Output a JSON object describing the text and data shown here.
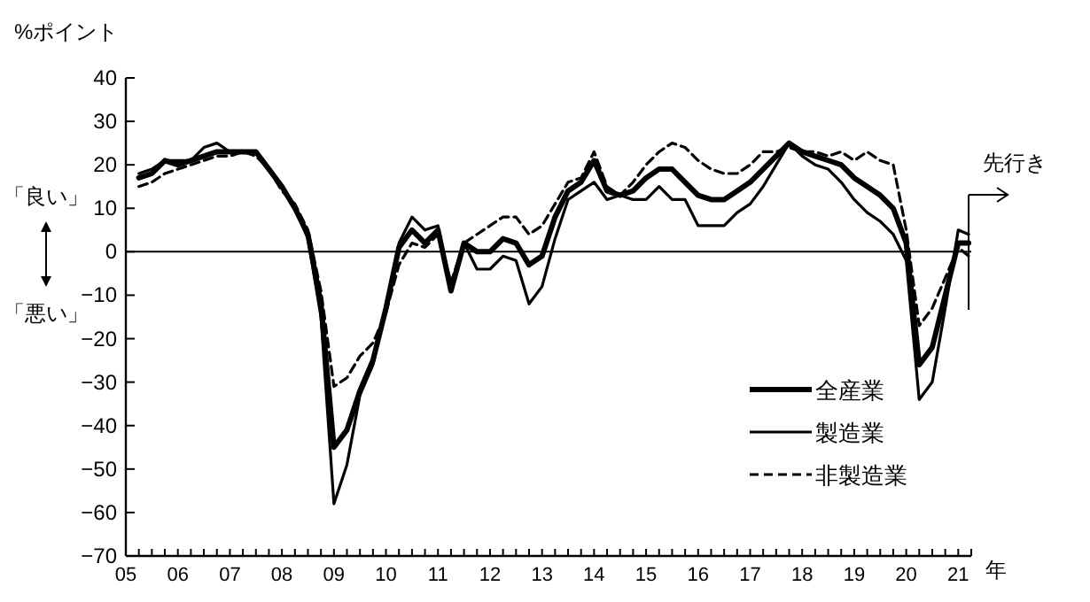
{
  "chart_data": {
    "type": "line",
    "ylabel": "%ポイント",
    "xlabel": "年",
    "annotations": [
      "先行き",
      "「良い」",
      "「悪い」"
    ],
    "x": [
      2005.25,
      2005.5,
      2005.75,
      2006,
      2006.25,
      2006.5,
      2006.75,
      2007,
      2007.25,
      2007.5,
      2007.75,
      2008,
      2008.25,
      2008.5,
      2008.75,
      2009,
      2009.25,
      2009.5,
      2009.75,
      2010,
      2010.25,
      2010.5,
      2010.75,
      2011,
      2011.25,
      2011.5,
      2011.75,
      2012,
      2012.25,
      2012.5,
      2012.75,
      2013,
      2013.25,
      2013.5,
      2013.75,
      2014,
      2014.25,
      2014.5,
      2014.75,
      2015,
      2015.25,
      2015.5,
      2015.75,
      2016,
      2016.25,
      2016.5,
      2016.75,
      2017,
      2017.25,
      2017.5,
      2017.75,
      2018,
      2018.25,
      2018.5,
      2018.75,
      2019,
      2019.25,
      2019.5,
      2019.75,
      2020,
      2020.25,
      2020.5,
      2020.75,
      2021,
      2021.2
    ],
    "series": [
      {
        "name": "全産業",
        "color": "#000000",
        "line_style": "solid",
        "values": [
          17,
          18,
          21,
          20,
          21,
          22,
          23,
          23,
          23,
          23,
          19,
          15,
          10,
          4,
          -12,
          -45,
          -41,
          -32,
          -25,
          -13,
          1,
          5,
          2,
          5,
          -9,
          2,
          0,
          0,
          3,
          2,
          -3,
          -1,
          8,
          14,
          16,
          21,
          14,
          13,
          14,
          17,
          19,
          19,
          16,
          13,
          12,
          12,
          14,
          16,
          19,
          22,
          25,
          23,
          22,
          21,
          20,
          17,
          15,
          13,
          10,
          2,
          -26,
          -22,
          -10,
          2,
          2
        ]
      },
      {
        "name": "製造業",
        "color": "#000000",
        "line_style": "solid",
        "values": [
          18,
          19,
          21,
          21,
          21,
          24,
          25,
          23,
          23,
          23,
          19,
          15,
          10,
          3,
          -15,
          -58,
          -49,
          -33,
          -26,
          -13,
          2,
          8,
          5,
          6,
          -9,
          2,
          -4,
          -4,
          -1,
          -2,
          -12,
          -8,
          3,
          12,
          14,
          16,
          12,
          13,
          12,
          12,
          15,
          12,
          12,
          6,
          6,
          6,
          9,
          11,
          15,
          20,
          25,
          22,
          20,
          19,
          16,
          12,
          9,
          7,
          4,
          -2,
          -34,
          -30,
          -13,
          5,
          4
        ]
      },
      {
        "name": "非製造業",
        "color": "#000000",
        "line_style": "dashed",
        "values": [
          15,
          16,
          18,
          19,
          20,
          21,
          22,
          22,
          23,
          22,
          19,
          14,
          11,
          5,
          -9,
          -31,
          -29,
          -24,
          -21,
          -14,
          -3,
          2,
          1,
          4,
          -7,
          2,
          4,
          6,
          8,
          8,
          4,
          6,
          11,
          16,
          17,
          23,
          15,
          13,
          16,
          20,
          23,
          25,
          24,
          21,
          19,
          18,
          18,
          20,
          23,
          23,
          24,
          23,
          23,
          22,
          23,
          21,
          23,
          21,
          20,
          5,
          -17,
          -13,
          -6,
          1,
          -1
        ]
      }
    ],
    "xlim": [
      2005,
      2021.25
    ],
    "xticks": [
      {
        "value": 2005,
        "label": "05"
      },
      {
        "value": 2005.25,
        "label": null
      },
      {
        "value": 2005.5,
        "label": null
      },
      {
        "value": 2005.75,
        "label": null
      },
      {
        "value": 2006,
        "label": "06"
      },
      {
        "value": 2006.25,
        "label": null
      },
      {
        "value": 2006.5,
        "label": null
      },
      {
        "value": 2006.75,
        "label": null
      },
      {
        "value": 2007,
        "label": "07"
      },
      {
        "value": 2007.25,
        "label": null
      },
      {
        "value": 2007.5,
        "label": null
      },
      {
        "value": 2007.75,
        "label": null
      },
      {
        "value": 2008,
        "label": "08"
      },
      {
        "value": 2008.25,
        "label": null
      },
      {
        "value": 2008.5,
        "label": null
      },
      {
        "value": 2008.75,
        "label": null
      },
      {
        "value": 2009,
        "label": "09"
      },
      {
        "value": 2009.25,
        "label": null
      },
      {
        "value": 2009.5,
        "label": null
      },
      {
        "value": 2009.75,
        "label": null
      },
      {
        "value": 2010,
        "label": "10"
      },
      {
        "value": 2010.25,
        "label": null
      },
      {
        "value": 2010.5,
        "label": null
      },
      {
        "value": 2010.75,
        "label": null
      },
      {
        "value": 2011,
        "label": "11"
      },
      {
        "value": 2011.25,
        "label": null
      },
      {
        "value": 2011.5,
        "label": null
      },
      {
        "value": 2011.75,
        "label": null
      },
      {
        "value": 2012,
        "label": "12"
      },
      {
        "value": 2012.25,
        "label": null
      },
      {
        "value": 2012.5,
        "label": null
      },
      {
        "value": 2012.75,
        "label": null
      },
      {
        "value": 2013,
        "label": "13"
      },
      {
        "value": 2013.25,
        "label": null
      },
      {
        "value": 2013.5,
        "label": null
      },
      {
        "value": 2013.75,
        "label": null
      },
      {
        "value": 2014,
        "label": "14"
      },
      {
        "value": 2014.25,
        "label": null
      },
      {
        "value": 2014.5,
        "label": null
      },
      {
        "value": 2014.75,
        "label": null
      },
      {
        "value": 2015,
        "label": "15"
      },
      {
        "value": 2015.25,
        "label": null
      },
      {
        "value": 2015.5,
        "label": null
      },
      {
        "value": 2015.75,
        "label": null
      },
      {
        "value": 2016,
        "label": "16"
      },
      {
        "value": 2016.25,
        "label": null
      },
      {
        "value": 2016.5,
        "label": null
      },
      {
        "value": 2016.75,
        "label": null
      },
      {
        "value": 2017,
        "label": "17"
      },
      {
        "value": 2017.25,
        "label": null
      },
      {
        "value": 2017.5,
        "label": null
      },
      {
        "value": 2017.75,
        "label": null
      },
      {
        "value": 2018,
        "label": "18"
      },
      {
        "value": 2018.25,
        "label": null
      },
      {
        "value": 2018.5,
        "label": null
      },
      {
        "value": 2018.75,
        "label": null
      },
      {
        "value": 2019,
        "label": "19"
      },
      {
        "value": 2019.25,
        "label": null
      },
      {
        "value": 2019.5,
        "label": null
      },
      {
        "value": 2019.75,
        "label": null
      },
      {
        "value": 2020,
        "label": "20"
      },
      {
        "value": 2020.25,
        "label": null
      },
      {
        "value": 2020.5,
        "label": null
      },
      {
        "value": 2020.75,
        "label": null
      },
      {
        "value": 2021,
        "label": "21"
      },
      {
        "value": 2021.25,
        "label": null
      }
    ],
    "ylim": [
      -70,
      40
    ],
    "yticks": [
      -70,
      -60,
      -50,
      -40,
      -30,
      -20,
      -10,
      0,
      10,
      20,
      30,
      40
    ],
    "ref_lines": [
      {
        "axis": "y",
        "value": 0,
        "color": "#000000"
      }
    ],
    "grid": false,
    "legend": "bottom right",
    "marker": "none"
  }
}
